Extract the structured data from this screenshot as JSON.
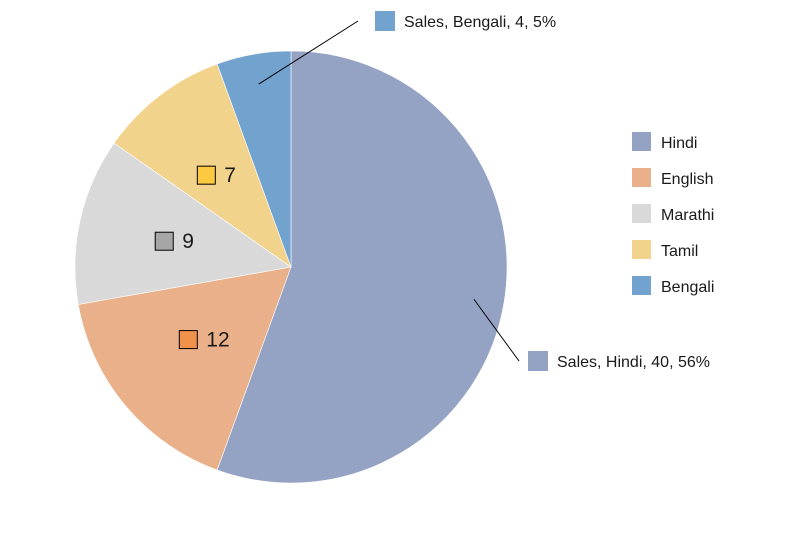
{
  "chart_data": {
    "type": "pie",
    "categories": [
      "Hindi",
      "English",
      "Marathi",
      "Tamil",
      "Bengali"
    ],
    "values": [
      40,
      12,
      9,
      7,
      4
    ],
    "series": [
      {
        "name": "Sales",
        "values": [
          40,
          12,
          9,
          7,
          4
        ]
      }
    ],
    "colors": [
      "#94a3c4",
      "#e9b08a",
      "#d9d9d9",
      "#f2d38b",
      "#72a3cf"
    ],
    "legend_position": "right",
    "data_labels": [
      {
        "category": "Hindi",
        "text": "Sales, Hindi, 40, 56%",
        "marker_color": "#94a3c4",
        "style": "callout"
      },
      {
        "category": "English",
        "text": "12",
        "marker_color": "#f0924c",
        "style": "inside"
      },
      {
        "category": "Marathi",
        "text": "9",
        "marker_color": "#a6a6a6",
        "style": "inside"
      },
      {
        "category": "Tamil",
        "text": "7",
        "marker_color": "#fcc941",
        "style": "inside"
      },
      {
        "category": "Bengali",
        "text": "Sales, Bengali, 4, 5%",
        "marker_color": "#72a3cf",
        "style": "callout"
      }
    ]
  }
}
